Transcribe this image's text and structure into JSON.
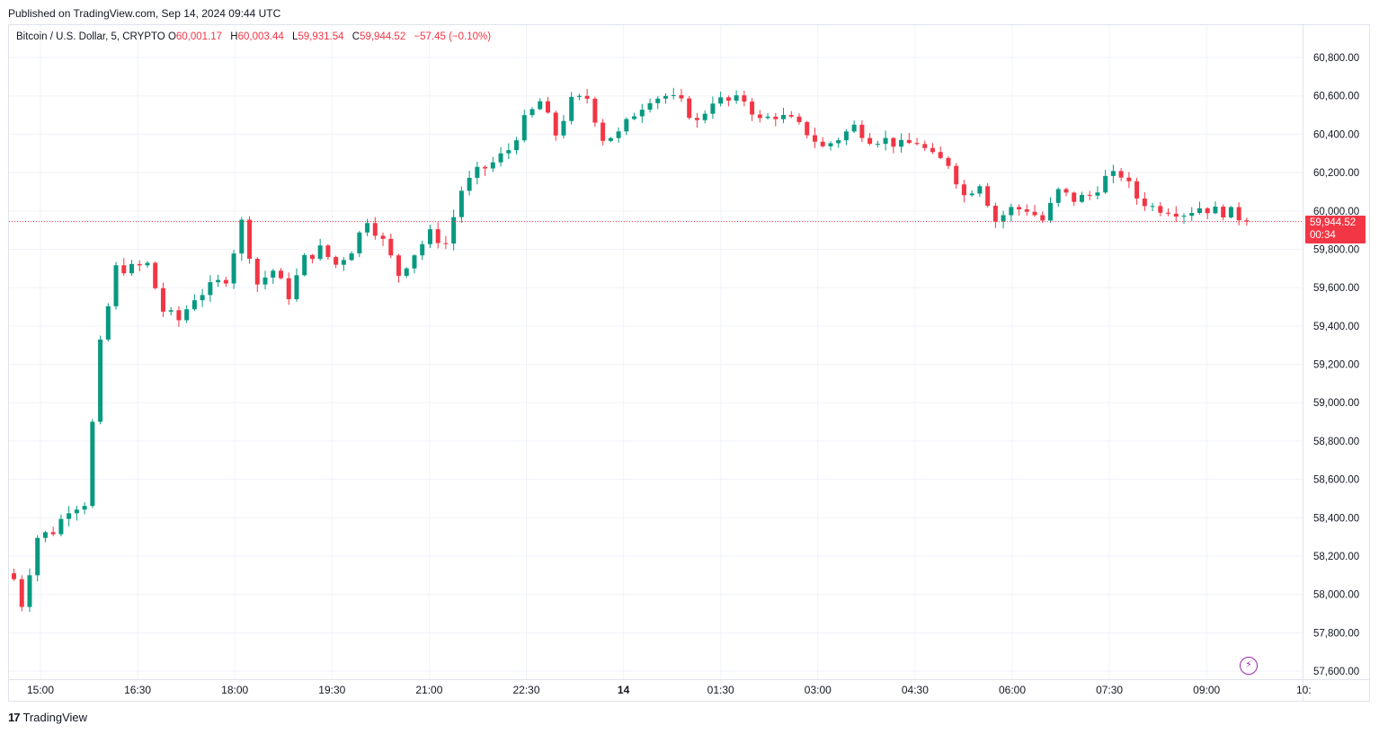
{
  "published": "Published on TradingView.com, Sep 14, 2024 09:44 UTC",
  "legend": {
    "symbol": "Bitcoin / U.S. Dollar, 5, CRYPTO",
    "o_label": "O",
    "o_value": "60,001.17",
    "h_label": "H",
    "h_value": "60,003.44",
    "l_label": "L",
    "l_value": "59,931.54",
    "c_label": "C",
    "c_value": "59,944.52",
    "change": "−57.45 (−0.10%)"
  },
  "last_price": {
    "value": "59,944.52",
    "countdown": "00:34"
  },
  "footer": {
    "logo_mark": "17",
    "brand": "TradingView"
  },
  "colors": {
    "up": "#089981",
    "down": "#f23645",
    "grid": "#f0f3fa",
    "text": "#131722",
    "accent": "#9c27b0"
  },
  "icons": {
    "bolt": "lightning-icon",
    "logo": "tradingview-logo-icon"
  },
  "chart_data": {
    "type": "candlestick",
    "interval": "5",
    "y_ticks": [
      57600,
      57800,
      58000,
      58200,
      58400,
      58600,
      58800,
      59000,
      59200,
      59400,
      59600,
      59800,
      60000,
      60200,
      60400,
      60600,
      60800
    ],
    "y_tick_labels": [
      "57,600.00",
      "57,800.00",
      "58,000.00",
      "58,200.00",
      "58,400.00",
      "58,600.00",
      "58,800.00",
      "59,000.00",
      "59,200.00",
      "59,400.00",
      "59,600.00",
      "59,800.00",
      "60,000.00",
      "60,200.00",
      "60,400.00",
      "60,600.00",
      "60,800.00"
    ],
    "ylim": [
      57580,
      60880
    ],
    "x_labels": [
      {
        "label": "15:00",
        "bold": false
      },
      {
        "label": "16:30",
        "bold": false
      },
      {
        "label": "18:00",
        "bold": false
      },
      {
        "label": "19:30",
        "bold": false
      },
      {
        "label": "21:00",
        "bold": false
      },
      {
        "label": "22:30",
        "bold": false
      },
      {
        "label": "14",
        "bold": true
      },
      {
        "label": "01:30",
        "bold": false
      },
      {
        "label": "03:00",
        "bold": false
      },
      {
        "label": "04:30",
        "bold": false
      },
      {
        "label": "06:00",
        "bold": false
      },
      {
        "label": "07:30",
        "bold": false
      },
      {
        "label": "09:00",
        "bold": false
      },
      {
        "label": "10:",
        "bold": false
      }
    ],
    "last_close": 59944.52,
    "path": [
      [
        0,
        58080
      ],
      [
        1,
        57950
      ],
      [
        3,
        58300
      ],
      [
        5,
        58330
      ],
      [
        7,
        58450
      ],
      [
        9,
        58480
      ],
      [
        11,
        59300
      ],
      [
        13,
        59700
      ],
      [
        15,
        59700
      ],
      [
        17,
        59720
      ],
      [
        19,
        59480
      ],
      [
        21,
        59430
      ],
      [
        23,
        59550
      ],
      [
        25,
        59600
      ],
      [
        27,
        59650
      ],
      [
        29,
        59940
      ],
      [
        31,
        59620
      ],
      [
        33,
        59690
      ],
      [
        35,
        59560
      ],
      [
        37,
        59750
      ],
      [
        39,
        59800
      ],
      [
        41,
        59720
      ],
      [
        43,
        59800
      ],
      [
        45,
        59960
      ],
      [
        47,
        59840
      ],
      [
        49,
        59670
      ],
      [
        51,
        59780
      ],
      [
        53,
        59880
      ],
      [
        55,
        59830
      ],
      [
        57,
        60110
      ],
      [
        59,
        60200
      ],
      [
        61,
        60250
      ],
      [
        63,
        60320
      ],
      [
        65,
        60470
      ],
      [
        67,
        60570
      ],
      [
        69,
        60400
      ],
      [
        71,
        60570
      ],
      [
        73,
        60590
      ],
      [
        75,
        60380
      ],
      [
        77,
        60400
      ],
      [
        79,
        60510
      ],
      [
        81,
        60590
      ],
      [
        83,
        60600
      ],
      [
        85,
        60560
      ],
      [
        87,
        60460
      ],
      [
        89,
        60580
      ],
      [
        91,
        60570
      ],
      [
        93,
        60580
      ],
      [
        95,
        60470
      ],
      [
        97,
        60500
      ],
      [
        99,
        60470
      ],
      [
        101,
        60410
      ],
      [
        103,
        60330
      ],
      [
        105,
        60380
      ],
      [
        107,
        60440
      ],
      [
        109,
        60380
      ],
      [
        111,
        60370
      ],
      [
        113,
        60340
      ],
      [
        115,
        60360
      ],
      [
        117,
        60280
      ],
      [
        119,
        60250
      ],
      [
        121,
        60080
      ],
      [
        123,
        60150
      ],
      [
        125,
        59950
      ],
      [
        127,
        60010
      ],
      [
        129,
        60010
      ],
      [
        131,
        59950
      ],
      [
        133,
        60100
      ],
      [
        135,
        60060
      ],
      [
        137,
        60080
      ],
      [
        139,
        60170
      ],
      [
        141,
        60190
      ],
      [
        143,
        60070
      ],
      [
        145,
        60020
      ],
      [
        147,
        60010
      ],
      [
        149,
        59990
      ],
      [
        151,
        60020
      ],
      [
        153,
        60000
      ],
      [
        155,
        59990
      ],
      [
        157,
        59944.52
      ]
    ]
  }
}
